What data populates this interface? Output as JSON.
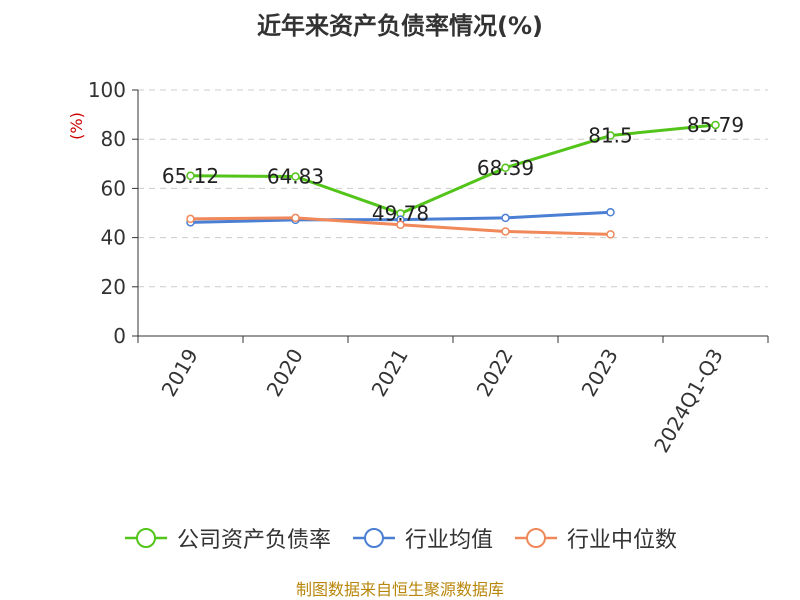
{
  "chart_data": {
    "type": "line",
    "title": "近年来资产负债率情况(%)",
    "ylabel": "(%)",
    "categories": [
      "2019",
      "2020",
      "2021",
      "2022",
      "2023",
      "2024Q1-Q3"
    ],
    "ylim": [
      0,
      100
    ],
    "yticks": [
      0,
      20,
      40,
      60,
      80,
      100
    ],
    "grid": true,
    "legend_position": "bottom",
    "series": [
      {
        "name": "公司资产负债率",
        "color": "#52c41a",
        "values": [
          65.12,
          64.83,
          49.78,
          68.39,
          81.5,
          85.79
        ],
        "labels": [
          "65.12",
          "64.83",
          "49.78",
          "68.39",
          "81.5",
          "85.79"
        ]
      },
      {
        "name": "行业均值",
        "color": "#4a7fd4",
        "values": [
          46.2,
          47.2,
          47.3,
          48.0,
          50.3,
          null
        ]
      },
      {
        "name": "行业中位数",
        "color": "#f0885a",
        "values": [
          47.6,
          48.0,
          45.2,
          42.5,
          41.3,
          null
        ]
      }
    ]
  },
  "footer": {
    "source": "制图数据来自恒生聚源数据库"
  }
}
